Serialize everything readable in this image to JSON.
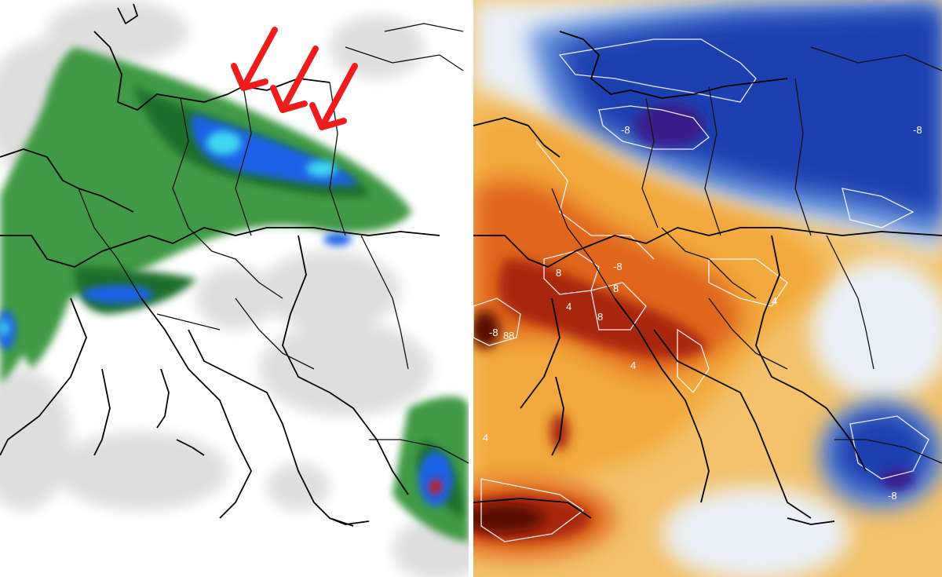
{
  "panels": [
    {
      "id": "precipitation",
      "field": "precipitation",
      "palette": {
        "light": "#d3d3d3",
        "green": "#3f9a45",
        "dark_green": "#1f6e2a",
        "blue": "#1f62e8",
        "cyan": "#40d8ee",
        "yellow": "#f2f24a",
        "red": "#cc1a1a"
      },
      "annotations": {
        "arrow_count": 3,
        "arrow_color": "#ee1c1c",
        "arrow_icon": "red-arrow-icon"
      }
    },
    {
      "id": "temperature-anomaly",
      "field": "temperature",
      "palette": {
        "cold_deep": "#3a1a8a",
        "cold": "#1f3fb0",
        "cool": "#5f8ad8",
        "neutral": "#e9f1f8",
        "warm_light": "#f8e8a8",
        "warm": "#f2a93c",
        "hot": "#e0661f",
        "very_hot": "#a8260c",
        "extreme": "#5a0a05"
      },
      "contour_labels": [
        "-8",
        "-8",
        "8",
        "-8",
        "8",
        "8",
        "4",
        "4",
        "8",
        "4",
        "-8",
        "8",
        "-8",
        "4"
      ]
    }
  ]
}
